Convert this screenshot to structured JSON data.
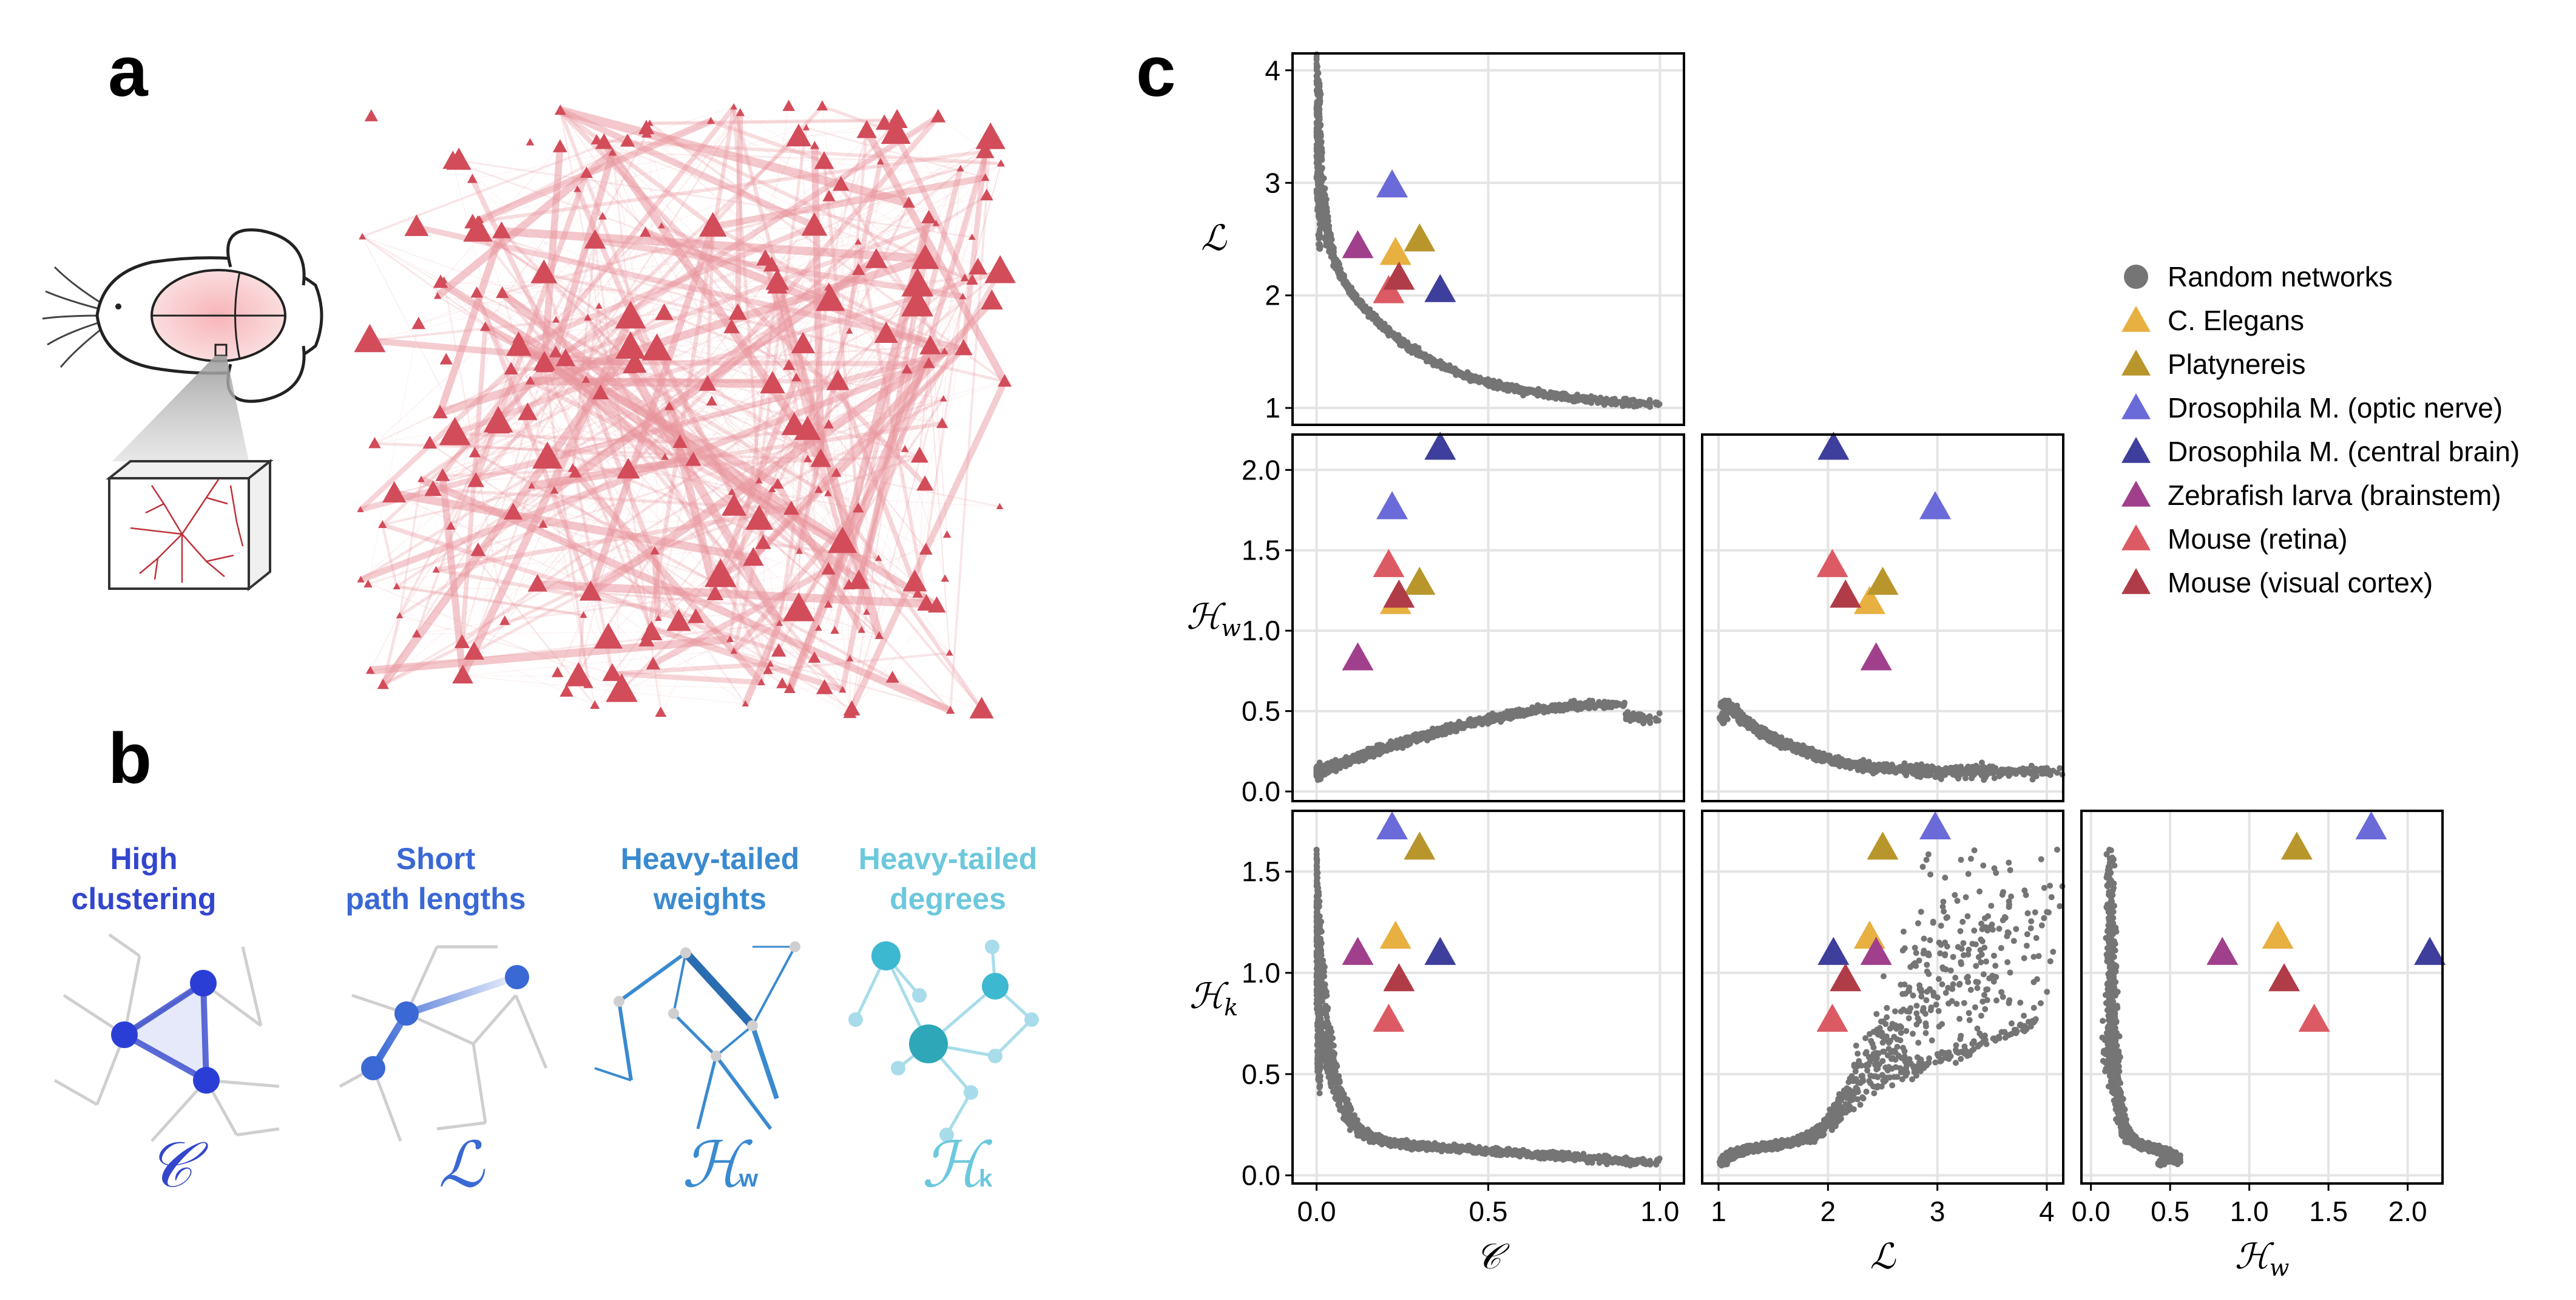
{
  "figure": {
    "panels": {
      "a": {
        "letter": "a"
      },
      "b": {
        "letter": "b",
        "properties": [
          {
            "line1": "High",
            "line2": "clustering",
            "symbol": "𝒞",
            "sub": "",
            "color": "#3346cc"
          },
          {
            "line1": "Short",
            "line2": "path lengths",
            "symbol": "ℒ",
            "sub": "",
            "color": "#3a68d4"
          },
          {
            "line1": "Heavy-tailed",
            "line2": "weights",
            "symbol": "ℋ",
            "sub": "w",
            "color": "#3a8ad0"
          },
          {
            "line1": "Heavy-tailed",
            "line2": "degrees",
            "symbol": "ℋ",
            "sub": "k",
            "color": "#6cc8dc"
          }
        ]
      },
      "c": {
        "letter": "c"
      }
    }
  },
  "chart_data": {
    "type": "scatter",
    "layout": "lower-triangular pair plot",
    "variables": [
      {
        "key": "C",
        "label": "𝒞",
        "sub": "",
        "ticks": [
          "0.0",
          "0.5",
          "1.0"
        ],
        "tick_values": [
          0,
          0.5,
          1.0
        ],
        "range": [
          -0.07,
          1.07
        ]
      },
      {
        "key": "L",
        "label": "ℒ",
        "sub": "",
        "ticks": [
          "1",
          "2",
          "3",
          "4"
        ],
        "tick_values": [
          1,
          2,
          3,
          4
        ],
        "range": [
          0.85,
          4.15
        ]
      },
      {
        "key": "Hw",
        "label": "ℋ",
        "sub": "w",
        "ticks": [
          "0.0",
          "0.5",
          "1.0",
          "1.5",
          "2.0"
        ],
        "tick_values": [
          0,
          0.5,
          1.0,
          1.5,
          2.0
        ],
        "range": [
          -0.06,
          2.22
        ]
      },
      {
        "key": "Hk",
        "label": "ℋ",
        "sub": "k",
        "ticks": [
          "0.0",
          "0.5",
          "1.0",
          "1.5"
        ],
        "tick_values": [
          0,
          0.5,
          1.0,
          1.5
        ],
        "range": [
          -0.04,
          1.8
        ]
      }
    ],
    "panels": [
      {
        "x": "C",
        "y": "L"
      },
      {
        "x": "C",
        "y": "Hw"
      },
      {
        "x": "L",
        "y": "Hw"
      },
      {
        "x": "C",
        "y": "Hk"
      },
      {
        "x": "L",
        "y": "Hk"
      },
      {
        "x": "Hw",
        "y": "Hk"
      }
    ],
    "grid": true,
    "legend_position": "right",
    "random_networks": {
      "name": "Random networks",
      "color": "#757575"
    },
    "series": [
      {
        "name": "C. Elegans",
        "color": "#e8b040",
        "C": 0.23,
        "L": 2.38,
        "Hw": 1.18,
        "Hk": 1.18
      },
      {
        "name": "Platynereis",
        "color": "#b8962c",
        "C": 0.3,
        "L": 2.5,
        "Hw": 1.3,
        "Hk": 1.62
      },
      {
        "name": "Drosophila M. (optic nerve)",
        "color": "#6a6ad8",
        "C": 0.22,
        "L": 2.98,
        "Hw": 1.77,
        "Hk": 1.72
      },
      {
        "name": "Drosophila M. (central brain)",
        "color": "#3e3e9c",
        "C": 0.36,
        "L": 2.05,
        "Hw": 2.14,
        "Hk": 1.1
      },
      {
        "name": "Zebrafish larva (brainstem)",
        "color": "#a0408c",
        "C": 0.12,
        "L": 2.44,
        "Hw": 0.83,
        "Hk": 1.1
      },
      {
        "name": "Mouse (retina)",
        "color": "#dc5a64",
        "C": 0.21,
        "L": 2.04,
        "Hw": 1.41,
        "Hk": 0.77
      },
      {
        "name": "Mouse (visual cortex)",
        "color": "#b03c48",
        "C": 0.24,
        "L": 2.16,
        "Hw": 1.22,
        "Hk": 0.97
      }
    ]
  }
}
